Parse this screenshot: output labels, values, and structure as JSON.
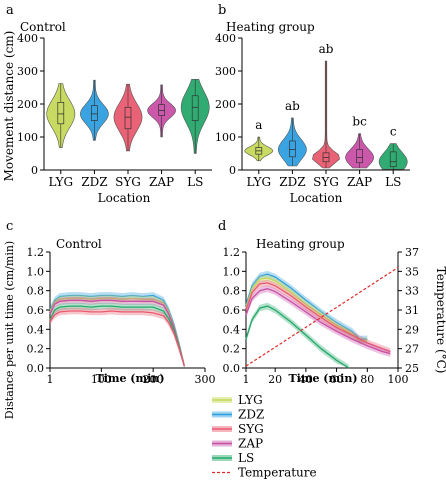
{
  "colors": {
    "LYG": "#c6d85a",
    "ZDZ": "#2f9fe0",
    "SYG": "#e85a6e",
    "ZAP": "#c84fa6",
    "LS": "#25a86a",
    "Temperature": "#e02a2a"
  },
  "chart_data": [
    {
      "panel": "a",
      "type": "violin",
      "title": "Control",
      "ylabel": "Movement distance (cm)",
      "xlabel": "Location",
      "categories": [
        "LYG",
        "ZDZ",
        "SYG",
        "ZAP",
        "LS"
      ],
      "ylim": [
        0,
        400
      ],
      "yticks": [
        "0",
        "100",
        "200",
        "300",
        "400"
      ],
      "violins": [
        {
          "name": "LYG",
          "min": 68,
          "q1": 140,
          "median": 170,
          "q3": 205,
          "max": 262
        },
        {
          "name": "ZDZ",
          "min": 90,
          "q1": 150,
          "median": 170,
          "q3": 195,
          "max": 272
        },
        {
          "name": "SYG",
          "min": 58,
          "q1": 125,
          "median": 160,
          "q3": 190,
          "max": 260
        },
        {
          "name": "ZAP",
          "min": 100,
          "q1": 165,
          "median": 180,
          "q3": 198,
          "max": 258
        },
        {
          "name": "LS",
          "min": 50,
          "q1": 150,
          "median": 190,
          "q3": 225,
          "max": 275
        }
      ]
    },
    {
      "panel": "b",
      "type": "violin",
      "title": "Heating group",
      "ylabel": "",
      "xlabel": "Location",
      "categories": [
        "LYG",
        "ZDZ",
        "SYG",
        "ZAP",
        "LS"
      ],
      "ylim": [
        0,
        400
      ],
      "yticks": [
        "0",
        "100",
        "200",
        "300",
        "400"
      ],
      "annotations": [
        "a",
        "ab",
        "ab",
        "bc",
        "c"
      ],
      "violins": [
        {
          "name": "LYG",
          "min": 28,
          "q1": 48,
          "median": 58,
          "q3": 68,
          "max": 100
        },
        {
          "name": "ZDZ",
          "min": 12,
          "q1": 40,
          "median": 62,
          "q3": 88,
          "max": 158
        },
        {
          "name": "SYG",
          "min": 6,
          "q1": 25,
          "median": 38,
          "q3": 52,
          "max": 330
        },
        {
          "name": "ZAP",
          "min": 6,
          "q1": 22,
          "median": 38,
          "q3": 62,
          "max": 110
        },
        {
          "name": "LS",
          "min": 2,
          "q1": 10,
          "median": 25,
          "q3": 55,
          "max": 80
        }
      ]
    },
    {
      "panel": "c",
      "type": "line",
      "title": "Control",
      "ylabel": "Distance per unit time (cm/min)",
      "xlabel": "Time (min)",
      "xlim": [
        1,
        300
      ],
      "xticks": [
        "1",
        "100",
        "200",
        "300"
      ],
      "ylim": [
        0,
        1.2
      ],
      "yticks": [
        "0.0",
        "0.2",
        "0.4",
        "0.6",
        "0.8",
        "1.0",
        "1.2"
      ],
      "x": [
        1,
        10,
        20,
        40,
        60,
        80,
        100,
        120,
        140,
        160,
        180,
        200,
        220,
        230,
        240,
        250,
        260
      ],
      "series": [
        {
          "name": "ZDZ",
          "values": [
            0.6,
            0.7,
            0.74,
            0.75,
            0.75,
            0.74,
            0.75,
            0.75,
            0.74,
            0.75,
            0.74,
            0.75,
            0.7,
            0.6,
            0.45,
            0.25,
            0.02
          ]
        },
        {
          "name": "LYG",
          "values": [
            0.58,
            0.68,
            0.71,
            0.72,
            0.72,
            0.71,
            0.72,
            0.72,
            0.71,
            0.72,
            0.71,
            0.71,
            0.67,
            0.58,
            0.43,
            0.24,
            0.02
          ]
        },
        {
          "name": "ZAP",
          "values": [
            0.56,
            0.66,
            0.69,
            0.7,
            0.7,
            0.69,
            0.7,
            0.7,
            0.69,
            0.69,
            0.69,
            0.69,
            0.65,
            0.56,
            0.42,
            0.23,
            0.02
          ]
        },
        {
          "name": "LS",
          "values": [
            0.5,
            0.6,
            0.63,
            0.64,
            0.64,
            0.63,
            0.64,
            0.64,
            0.63,
            0.63,
            0.63,
            0.63,
            0.59,
            0.51,
            0.39,
            0.22,
            0.02
          ]
        },
        {
          "name": "SYG",
          "values": [
            0.48,
            0.55,
            0.58,
            0.59,
            0.59,
            0.58,
            0.58,
            0.59,
            0.58,
            0.58,
            0.58,
            0.57,
            0.54,
            0.47,
            0.36,
            0.2,
            0.02
          ]
        }
      ]
    },
    {
      "panel": "d",
      "type": "line",
      "title": "Heating group",
      "ylabel": "",
      "y2label": "Temperature (°C)",
      "xlabel": "Time (min)",
      "xlim": [
        1,
        100
      ],
      "xticks": [
        "1",
        "20",
        "40",
        "60",
        "80",
        "100"
      ],
      "ylim": [
        0,
        1.2
      ],
      "yticks": [
        "0.0",
        "0.2",
        "0.4",
        "0.6",
        "0.8",
        "1.0",
        "1.2"
      ],
      "y2lim": [
        25,
        37
      ],
      "y2ticks": [
        "25",
        "27",
        "29",
        "31",
        "33",
        "35",
        "37"
      ],
      "series": [
        {
          "name": "ZDZ",
          "x": [
            1,
            5,
            10,
            15,
            20,
            30,
            40,
            50,
            60,
            70,
            75,
            80
          ],
          "values": [
            0.65,
            0.85,
            0.95,
            0.97,
            0.94,
            0.83,
            0.7,
            0.58,
            0.47,
            0.38,
            0.3,
            0.3
          ]
        },
        {
          "name": "LYG",
          "x": [
            1,
            5,
            10,
            15,
            20,
            30,
            40,
            50,
            60,
            70,
            75,
            80
          ],
          "values": [
            0.62,
            0.82,
            0.92,
            0.93,
            0.9,
            0.79,
            0.66,
            0.55,
            0.44,
            0.35,
            0.28,
            0.28
          ]
        },
        {
          "name": "SYG",
          "x": [
            1,
            5,
            10,
            15,
            20,
            30,
            40,
            50,
            60,
            70,
            80,
            90,
            95
          ],
          "values": [
            0.6,
            0.78,
            0.87,
            0.88,
            0.85,
            0.75,
            0.63,
            0.52,
            0.42,
            0.34,
            0.26,
            0.2,
            0.17
          ]
        },
        {
          "name": "ZAP",
          "x": [
            1,
            5,
            10,
            15,
            20,
            30,
            40,
            50,
            60,
            70,
            80,
            90,
            95
          ],
          "values": [
            0.55,
            0.72,
            0.8,
            0.82,
            0.79,
            0.69,
            0.58,
            0.47,
            0.38,
            0.3,
            0.23,
            0.17,
            0.15
          ]
        },
        {
          "name": "LS",
          "x": [
            1,
            5,
            10,
            15,
            20,
            30,
            40,
            50,
            60,
            68
          ],
          "values": [
            0.3,
            0.5,
            0.62,
            0.64,
            0.6,
            0.48,
            0.34,
            0.2,
            0.08,
            0.0
          ]
        },
        {
          "name": "Temperature",
          "axis": "right",
          "x": [
            1,
            100
          ],
          "values": [
            25.2,
            35.4
          ]
        }
      ]
    }
  ],
  "legend": [
    "LYG",
    "ZDZ",
    "SYG",
    "ZAP",
    "LS",
    "Temperature"
  ]
}
